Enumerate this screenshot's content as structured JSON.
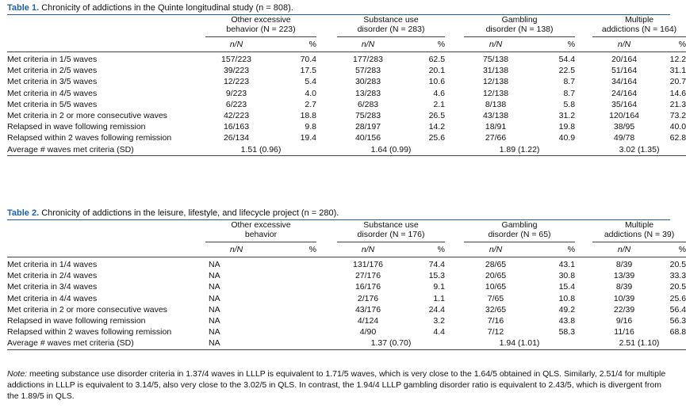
{
  "table1": {
    "label": "Table 1.",
    "caption": "Chronicity of addictions in the Quinte longitudinal study (n = 808).",
    "groups": [
      {
        "line1": "Other excessive",
        "line2": "behavior (N = 223)"
      },
      {
        "line1": "Substance use",
        "line2": "disorder (N = 283)"
      },
      {
        "line1": "Gambling",
        "line2": "disorder (N = 138)"
      },
      {
        "line1": "Multiple",
        "line2": "addictions (N = 164)"
      }
    ],
    "subheaders": {
      "nn": "n/N",
      "pct": "%"
    },
    "rows": [
      {
        "label": "Met criteria in 1/5 waves",
        "cells": [
          "157/223",
          "70.4",
          "177/283",
          "62.5",
          "75/138",
          "54.4",
          "20/164",
          "12.2"
        ]
      },
      {
        "label": "Met criteria in 2/5 waves",
        "cells": [
          "39/223",
          "17.5",
          "57/283",
          "20.1",
          "31/138",
          "22.5",
          "51/164",
          "31.1"
        ]
      },
      {
        "label": "Met criteria in 3/5 waves",
        "cells": [
          "12/223",
          "5.4",
          "30/283",
          "10.6",
          "12/138",
          "8.7",
          "34/164",
          "20.7"
        ]
      },
      {
        "label": "Met criteria in 4/5 waves",
        "cells": [
          "9/223",
          "4.0",
          "13/283",
          "4.6",
          "12/138",
          "8.7",
          "24/164",
          "14.6"
        ]
      },
      {
        "label": "Met criteria in 5/5 waves",
        "cells": [
          "6/223",
          "2.7",
          "6/283",
          "2.1",
          "8/138",
          "5.8",
          "35/164",
          "21.3"
        ]
      },
      {
        "label": "Met criteria in 2 or more consecutive waves",
        "cells": [
          "42/223",
          "18.8",
          "75/283",
          "26.5",
          "43/138",
          "31.2",
          "120/164",
          "73.2"
        ]
      },
      {
        "label": "Relapsed in wave following remission",
        "cells": [
          "16/163",
          "9.8",
          "28/197",
          "14.2",
          "18/91",
          "19.8",
          "38/95",
          "40.0"
        ]
      },
      {
        "label": "Relapsed within 2 waves following remission",
        "cells": [
          "26/134",
          "19.4",
          "40/156",
          "25.6",
          "27/66",
          "40.9",
          "49/78",
          "62.8"
        ]
      }
    ],
    "average": {
      "label": "Average # waves met criteria (SD)",
      "values": [
        "1.51 (0.96)",
        "1.64 (0.99)",
        "1.89 (1.22)",
        "3.02 (1.35)"
      ]
    }
  },
  "table2": {
    "label": "Table 2.",
    "caption": "Chronicity of addictions in the leisure, lifestyle, and lifecycle project (n = 280).",
    "groups": [
      {
        "line1": "Other excessive",
        "line2": "behavior"
      },
      {
        "line1": "Substance use",
        "line2": "disorder (N = 176)"
      },
      {
        "line1": "Gambling",
        "line2": "disorder (N = 65)"
      },
      {
        "line1": "Multiple",
        "line2": "addictions (N = 39)"
      }
    ],
    "subheaders": {
      "nn": "n/N",
      "pct": "%"
    },
    "rows": [
      {
        "label": "Met criteria in 1/4 waves",
        "cells": [
          "NA",
          "",
          "131/176",
          "74.4",
          "28/65",
          "43.1",
          "8/39",
          "20.5"
        ]
      },
      {
        "label": "Met criteria in 2/4 waves",
        "cells": [
          "NA",
          "",
          "27/176",
          "15.3",
          "20/65",
          "30.8",
          "13/39",
          "33.3"
        ]
      },
      {
        "label": "Met criteria in 3/4 waves",
        "cells": [
          "NA",
          "",
          "16/176",
          "9.1",
          "10/65",
          "15.4",
          "8/39",
          "20.5"
        ]
      },
      {
        "label": "Met criteria in 4/4 waves",
        "cells": [
          "NA",
          "",
          "2/176",
          "1.1",
          "7/65",
          "10.8",
          "10/39",
          "25.6"
        ]
      },
      {
        "label": "Met criteria in 2 or more consecutive waves",
        "cells": [
          "NA",
          "",
          "43/176",
          "24.4",
          "32/65",
          "49.2",
          "22/39",
          "56.4"
        ]
      },
      {
        "label": "Relapsed in wave following remission",
        "cells": [
          "NA",
          "",
          "4/124",
          "3.2",
          "7/16",
          "43.8",
          "9/16",
          "56.3"
        ]
      },
      {
        "label": "Relapsed within 2 waves following remission",
        "cells": [
          "NA",
          "",
          "4/90",
          "4.4",
          "7/12",
          "58.3",
          "11/16",
          "68.8"
        ]
      }
    ],
    "average": {
      "label": "Average # waves met criteria (SD)",
      "values": [
        "NA",
        "1.37 (0.70)",
        "1.94 (1.01)",
        "2.51 (1.10)"
      ]
    },
    "note_label": "Note:",
    "note_text": " meeting substance use disorder criteria in 1.37/4 waves in LLLP is equivalent to 1.71/5 waves, which is very close to the 1.64/5 obtained in QLS. Similarly, 2.51/4 for multiple addictions in LLLP is equivalent to 3.14/5, also very close to the 3.02/5 in QLS. In contrast, the 1.94/4 LLLP gambling disorder ratio is equivalent to 2.43/5, which is divergent from the 1.89/5 in QLS."
  }
}
